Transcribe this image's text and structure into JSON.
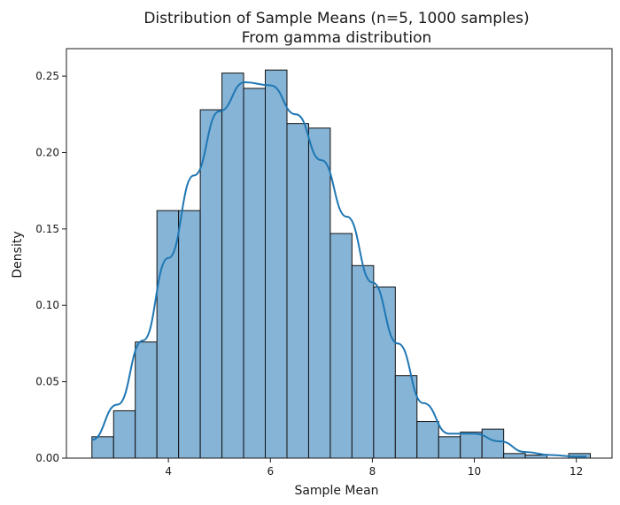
{
  "chart_data": {
    "type": "bar",
    "title": "Distribution of Sample Means (n=5, 1000 samples)",
    "subtitle": "From gamma distribution",
    "xlabel": "Sample Mean",
    "ylabel": "Density",
    "xlim": [
      2.0,
      12.7
    ],
    "ylim": [
      0.0,
      0.268
    ],
    "xticks": [
      4,
      6,
      8,
      10,
      12
    ],
    "yticks": [
      0.0,
      0.05,
      0.1,
      0.15,
      0.2,
      0.25
    ],
    "xtick_labels": [
      "4",
      "6",
      "8",
      "10",
      "12"
    ],
    "ytick_labels": [
      "0.00",
      "0.05",
      "0.10",
      "0.15",
      "0.20",
      "0.25"
    ],
    "bin_start": 2.5,
    "bin_width": 0.425,
    "values": [
      0.014,
      0.031,
      0.076,
      0.162,
      0.162,
      0.228,
      0.252,
      0.242,
      0.254,
      0.219,
      0.216,
      0.147,
      0.126,
      0.112,
      0.054,
      0.024,
      0.014,
      0.017,
      0.019,
      0.003,
      0.002,
      0.0,
      0.003
    ],
    "kde": {
      "x": [
        2.5,
        3.0,
        3.5,
        4.0,
        4.5,
        5.0,
        5.5,
        6.0,
        6.5,
        7.0,
        7.5,
        8.0,
        8.5,
        9.0,
        9.5,
        10.0,
        10.5,
        11.0,
        11.5,
        12.0,
        12.2
      ],
      "y": [
        0.012,
        0.035,
        0.077,
        0.131,
        0.185,
        0.227,
        0.246,
        0.244,
        0.225,
        0.195,
        0.158,
        0.115,
        0.075,
        0.036,
        0.016,
        0.016,
        0.011,
        0.004,
        0.002,
        0.001,
        0.001
      ]
    },
    "grid": false,
    "bar_color": "#86b4d6",
    "line_color": "#1f77b4"
  }
}
